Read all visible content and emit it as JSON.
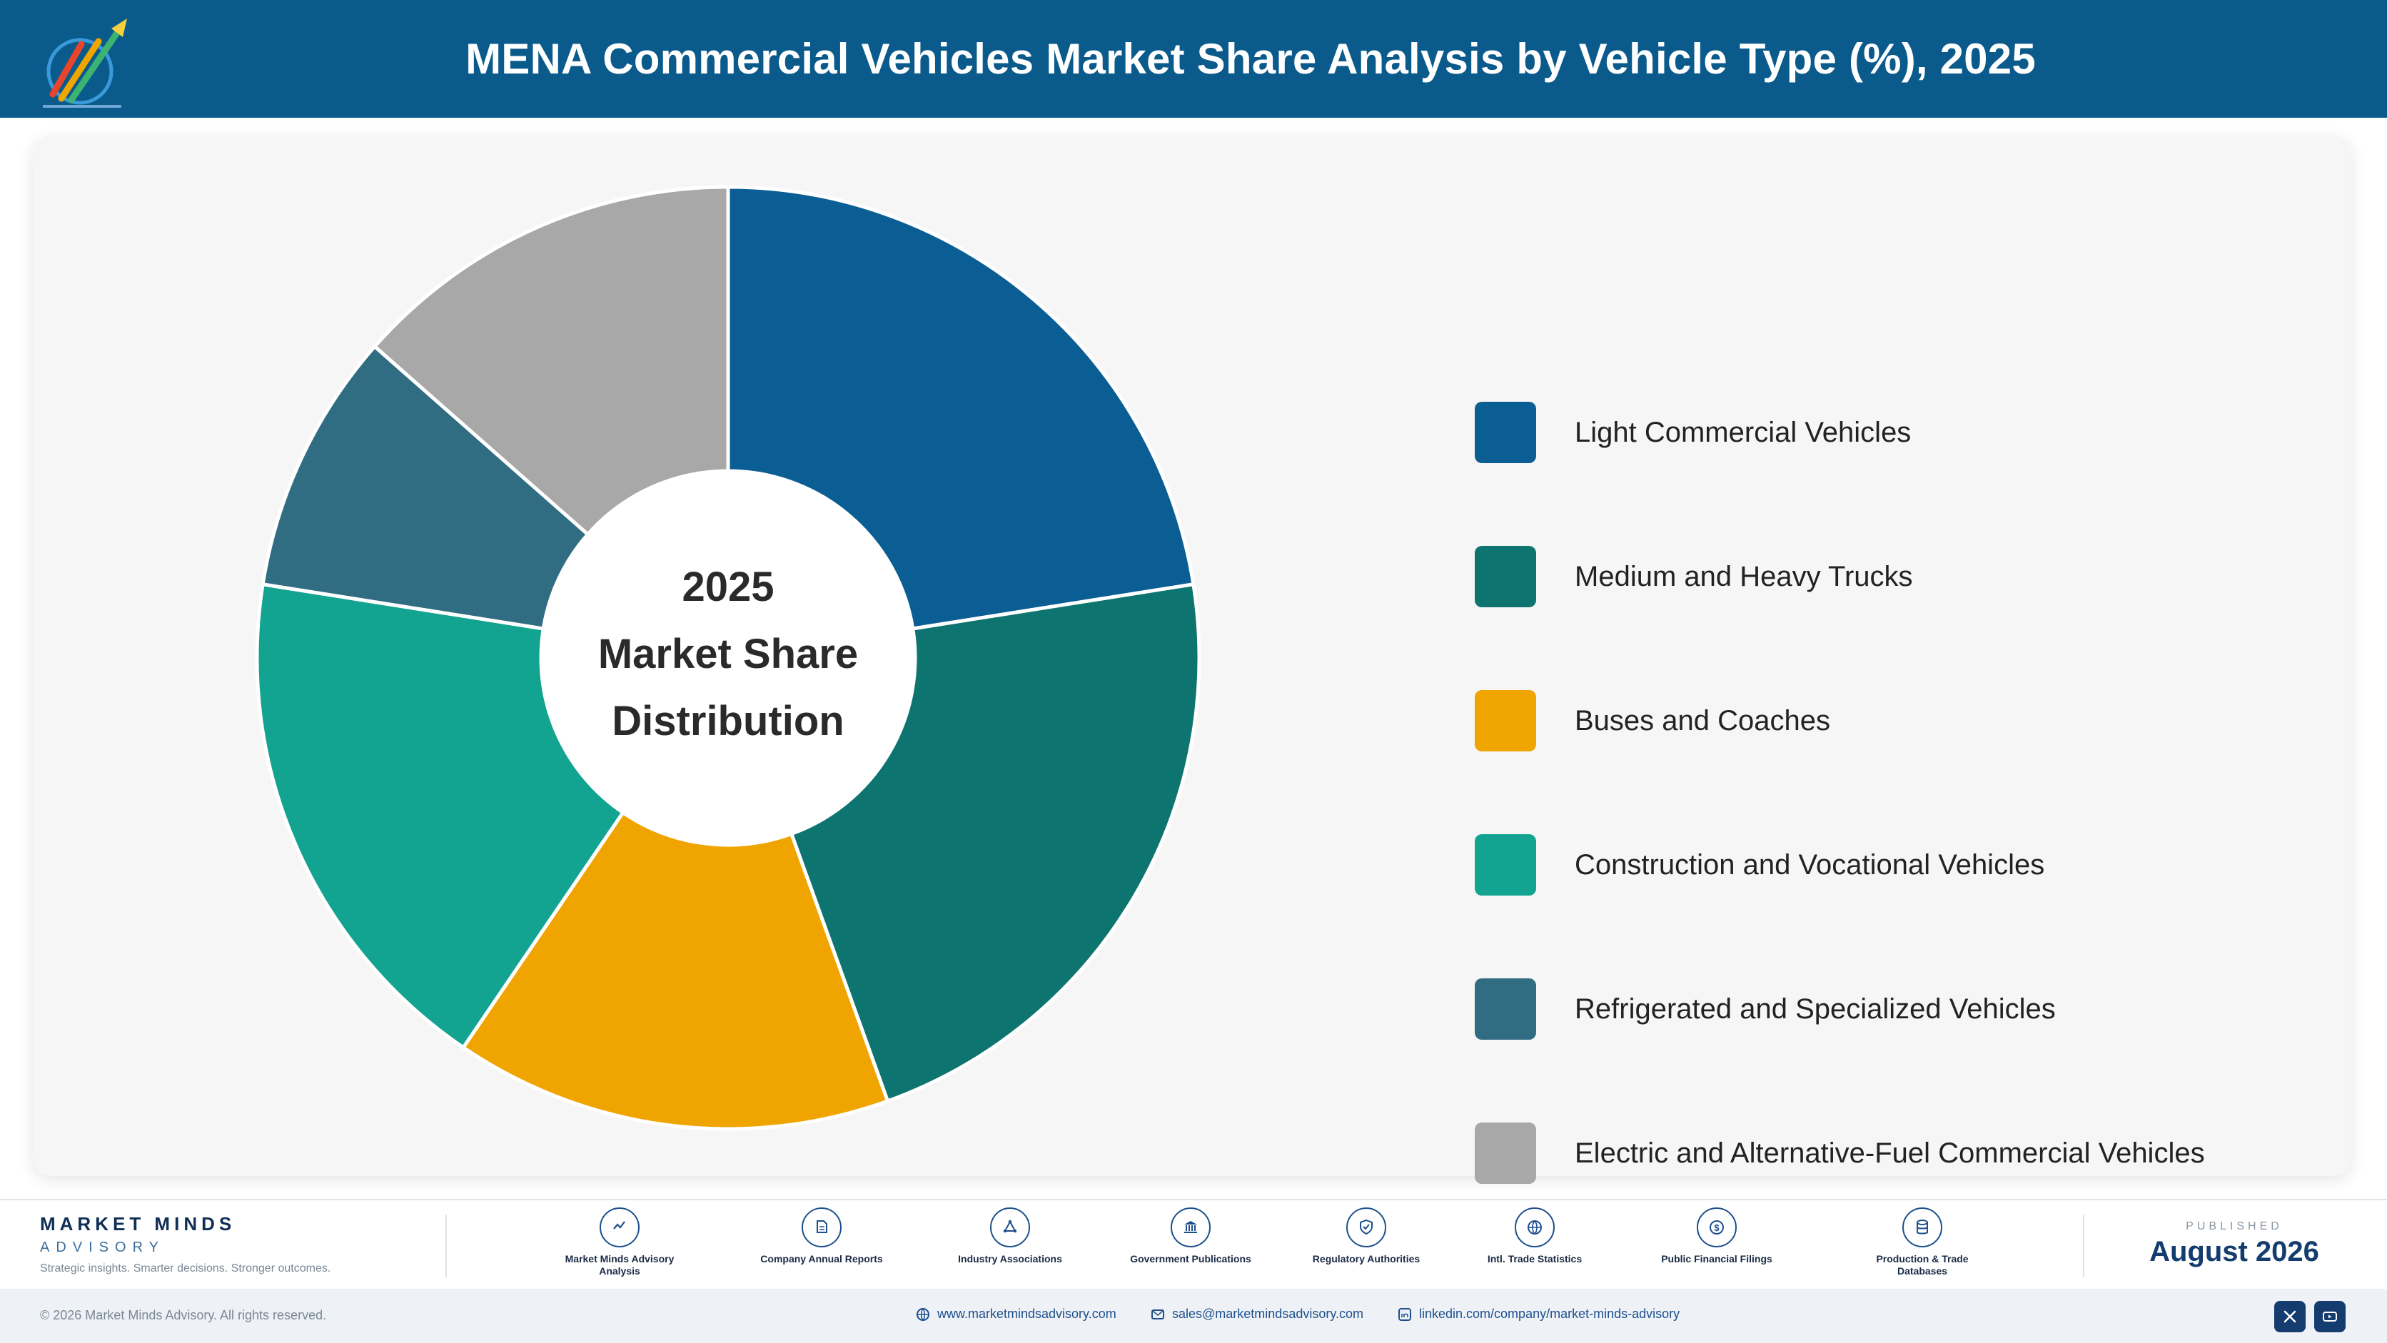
{
  "header": {
    "title": "MENA Commercial Vehicles Market Share Analysis by Vehicle Type (%), 2025",
    "logo_icon": "market-minds-logo"
  },
  "chart_data": {
    "type": "pie",
    "variant": "donut",
    "title": "MENA Commercial Vehicles Market Share Analysis by Vehicle Type (%), 2025",
    "center_text": [
      "2025",
      "Market Share",
      "Distribution"
    ],
    "data_labels_shown": false,
    "legend_position": "right",
    "categories": [
      "Light Commercial Vehicles",
      "Medium and Heavy Trucks",
      "Buses and Coaches",
      "Construction and Vocational Vehicles",
      "Refrigerated and Specialized Vehicles",
      "Electric and Alternative-Fuel Commercial Vehicles"
    ],
    "values": [
      22.5,
      22.0,
      15.0,
      18.0,
      9.0,
      13.5
    ],
    "colors": [
      "#0b5e94",
      "#0d7470",
      "#efa400",
      "#12a391",
      "#316d82",
      "#a8a8a8"
    ]
  },
  "footer": {
    "brand_name": "MARKET MINDS",
    "brand_sub": "ADVISORY",
    "tagline": "Strategic insights. Smarter decisions. Stronger outcomes.",
    "sources": [
      {
        "label": "Market Minds Advisory Analysis",
        "icon": "trend-chart-icon"
      },
      {
        "label": "Company Annual Reports",
        "icon": "document-icon"
      },
      {
        "label": "Industry Associations",
        "icon": "network-icon"
      },
      {
        "label": "Government Publications",
        "icon": "government-building-icon"
      },
      {
        "label": "Regulatory Authorities",
        "icon": "shield-check-icon"
      },
      {
        "label": "Intl. Trade Statistics",
        "icon": "globe-icon"
      },
      {
        "label": "Public Financial Filings",
        "icon": "dollar-coin-icon"
      },
      {
        "label": "Production & Trade Databases",
        "icon": "database-icon"
      }
    ],
    "published_label": "PUBLISHED",
    "published_date": "August 2026"
  },
  "bottom_bar": {
    "copyright": "© 2026 Market Minds Advisory. All rights reserved.",
    "website": "www.marketmindsadvisory.com",
    "email": "sales@marketmindsadvisory.com",
    "linkedin": "linkedin.com/company/market-minds-advisory",
    "social": [
      {
        "icon": "x-icon"
      },
      {
        "icon": "youtube-icon"
      }
    ]
  }
}
